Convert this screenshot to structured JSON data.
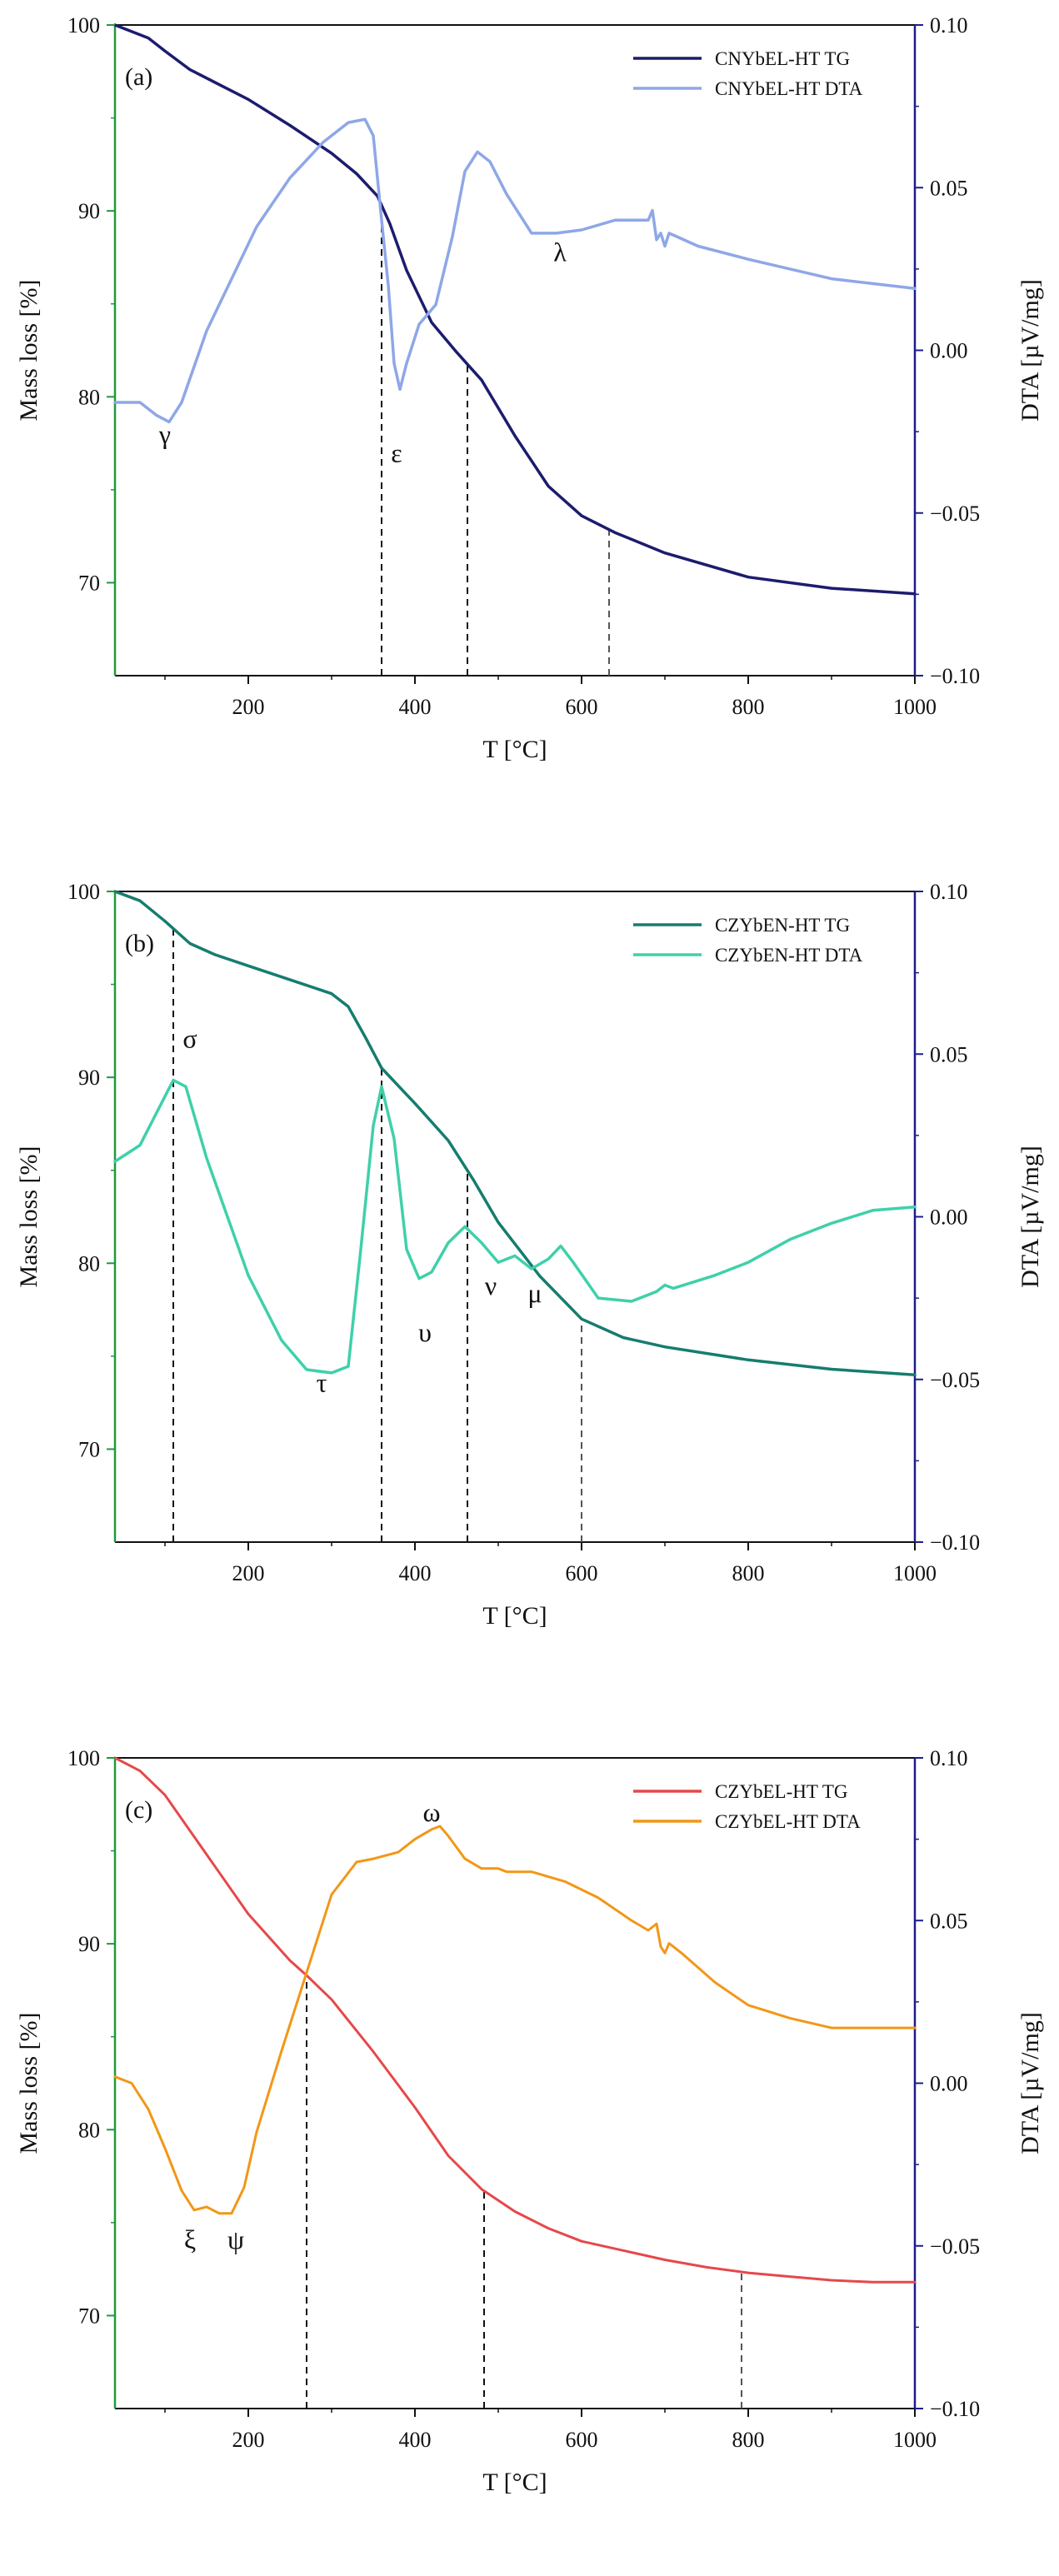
{
  "figure": {
    "x_label": "T [°C]",
    "left_label": "Mass loss [%]",
    "right_label": "DTA [µV/mg]",
    "x_ticks": [
      "200",
      "400",
      "600",
      "800",
      "1000"
    ],
    "left_ticks": [
      "70",
      "80",
      "90",
      "100"
    ],
    "right_ticks": [
      "−0.10",
      "−0.05",
      "0.00",
      "0.05",
      "0.10"
    ],
    "left_axis_color": "#1f9a3a",
    "right_axis_color": "#1c1c8c"
  },
  "chart_data": [
    {
      "type": "line",
      "panel": "(a)",
      "xlabel": "T [°C]",
      "ylabel": "Mass loss [%]",
      "y2label": "DTA [µV/mg]",
      "xlim": [
        40,
        1000
      ],
      "ylim": [
        65,
        100
      ],
      "y2lim": [
        -0.1,
        0.1
      ],
      "series": [
        {
          "name": "CNYbEL-HT TG",
          "axis": "left",
          "color": "#1c1c6e",
          "width": 3.5,
          "x": [
            40,
            80,
            100,
            130,
            200,
            250,
            300,
            330,
            355,
            370,
            390,
            420,
            450,
            480,
            520,
            560,
            600,
            640,
            700,
            800,
            900,
            1000
          ],
          "y": [
            100,
            99.3,
            98.6,
            97.6,
            96.0,
            94.6,
            93.1,
            92.0,
            90.8,
            89.3,
            86.8,
            84.0,
            82.4,
            80.9,
            77.9,
            75.2,
            73.6,
            72.7,
            71.6,
            70.3,
            69.7,
            69.4
          ]
        },
        {
          "name": "CNYbEL-HT DTA",
          "axis": "right",
          "color": "#8ea7e6",
          "width": 3.5,
          "x": [
            40,
            70,
            90,
            105,
            120,
            150,
            180,
            210,
            250,
            290,
            320,
            340,
            350,
            360,
            368,
            375,
            382,
            390,
            405,
            425,
            445,
            460,
            475,
            490,
            510,
            540,
            570,
            600,
            640,
            670,
            680,
            685,
            690,
            695,
            700,
            705,
            740,
            800,
            900,
            1000
          ],
          "y": [
            -0.016,
            -0.016,
            -0.02,
            -0.022,
            -0.016,
            0.006,
            0.022,
            0.038,
            0.053,
            0.064,
            0.07,
            0.071,
            0.066,
            0.04,
            0.02,
            -0.004,
            -0.012,
            -0.004,
            0.008,
            0.014,
            0.035,
            0.055,
            0.061,
            0.058,
            0.048,
            0.036,
            0.036,
            0.037,
            0.04,
            0.04,
            0.04,
            0.043,
            0.034,
            0.036,
            0.032,
            0.036,
            0.032,
            0.028,
            0.022,
            0.019
          ]
        }
      ],
      "dashed_x": [
        360,
        463,
        633
      ],
      "annotations": [
        {
          "text": "γ",
          "x": 100,
          "y": 77.5
        },
        {
          "text": "ε",
          "x": 378,
          "y": 76.5
        },
        {
          "text": "λ",
          "x": 574,
          "y": 87.3
        }
      ]
    },
    {
      "type": "line",
      "panel": "(b)",
      "xlabel": "T [°C]",
      "ylabel": "Mass loss [%]",
      "y2label": "DTA [µV/mg]",
      "xlim": [
        40,
        1000
      ],
      "ylim": [
        65,
        100
      ],
      "y2lim": [
        -0.1,
        0.1
      ],
      "series": [
        {
          "name": "CZYbEN-HT TG",
          "axis": "left",
          "color": "#157d6e",
          "width": 3.5,
          "x": [
            40,
            70,
            100,
            130,
            160,
            200,
            260,
            300,
            320,
            340,
            360,
            400,
            440,
            470,
            500,
            550,
            600,
            650,
            700,
            800,
            900,
            1000
          ],
          "y": [
            100,
            99.5,
            98.4,
            97.2,
            96.6,
            96.0,
            95.1,
            94.5,
            93.8,
            92.2,
            90.5,
            88.6,
            86.6,
            84.5,
            82.2,
            79.3,
            77.0,
            76.0,
            75.5,
            74.8,
            74.3,
            74.0
          ]
        },
        {
          "name": "CZYbEN-HT DTA",
          "axis": "right",
          "color": "#3fd0aa",
          "width": 3.5,
          "x": [
            40,
            70,
            90,
            110,
            125,
            150,
            200,
            240,
            270,
            300,
            320,
            335,
            350,
            360,
            375,
            390,
            405,
            420,
            440,
            460,
            480,
            500,
            520,
            540,
            560,
            575,
            590,
            620,
            660,
            690,
            700,
            710,
            760,
            800,
            850,
            900,
            950,
            1000
          ],
          "y": [
            0.017,
            0.022,
            0.032,
            0.042,
            0.04,
            0.018,
            -0.018,
            -0.038,
            -0.047,
            -0.048,
            -0.046,
            -0.01,
            0.028,
            0.04,
            0.024,
            -0.01,
            -0.019,
            -0.017,
            -0.008,
            -0.003,
            -0.008,
            -0.014,
            -0.012,
            -0.016,
            -0.013,
            -0.009,
            -0.014,
            -0.025,
            -0.026,
            -0.023,
            -0.021,
            -0.022,
            -0.018,
            -0.014,
            -0.007,
            -0.002,
            0.002,
            0.003
          ]
        }
      ],
      "dashed_x": [
        110,
        360,
        463,
        600
      ],
      "annotations": [
        {
          "text": "σ",
          "x": 130,
          "y": 91.6
        },
        {
          "text": "τ",
          "x": 288,
          "y": 73.1
        },
        {
          "text": "υ",
          "x": 412,
          "y": 75.8
        },
        {
          "text": "ν",
          "x": 491,
          "y": 78.3
        },
        {
          "text": "μ",
          "x": 544,
          "y": 77.9
        }
      ]
    },
    {
      "type": "line",
      "panel": "(c)",
      "xlabel": "T [°C]",
      "ylabel": "Mass loss [%]",
      "y2label": "DTA [µV/mg]",
      "xlim": [
        40,
        1000
      ],
      "ylim": [
        65,
        100
      ],
      "y2lim": [
        -0.1,
        0.1
      ],
      "series": [
        {
          "name": "CZYbEL-HT TG",
          "axis": "left",
          "color": "#e6484a",
          "width": 3.0,
          "x": [
            40,
            70,
            100,
            150,
            200,
            250,
            270,
            300,
            350,
            400,
            440,
            480,
            520,
            560,
            600,
            650,
            700,
            750,
            800,
            850,
            900,
            950,
            1000
          ],
          "y": [
            100,
            99.3,
            98.0,
            94.8,
            91.6,
            89.1,
            88.3,
            87.0,
            84.2,
            81.2,
            78.6,
            76.8,
            75.6,
            74.7,
            74.0,
            73.5,
            73.0,
            72.6,
            72.3,
            72.1,
            71.9,
            71.8,
            71.8
          ]
        },
        {
          "name": "CZYbEL-HT DTA",
          "axis": "right",
          "color": "#f29718",
          "width": 3.0,
          "x": [
            40,
            60,
            80,
            100,
            120,
            135,
            150,
            165,
            180,
            195,
            210,
            240,
            270,
            300,
            330,
            350,
            380,
            400,
            420,
            430,
            440,
            460,
            480,
            500,
            510,
            540,
            580,
            620,
            660,
            680,
            690,
            695,
            700,
            705,
            720,
            760,
            800,
            850,
            900,
            950,
            1000
          ],
          "y": [
            0.002,
            0.0,
            -0.008,
            -0.02,
            -0.033,
            -0.039,
            -0.038,
            -0.04,
            -0.04,
            -0.032,
            -0.015,
            0.01,
            0.034,
            0.058,
            0.068,
            0.069,
            0.071,
            0.075,
            0.078,
            0.079,
            0.076,
            0.069,
            0.066,
            0.066,
            0.065,
            0.065,
            0.062,
            0.057,
            0.05,
            0.047,
            0.049,
            0.042,
            0.04,
            0.043,
            0.04,
            0.031,
            0.024,
            0.02,
            0.017,
            0.017,
            0.017
          ]
        }
      ],
      "dashed_x": [
        270,
        483,
        792
      ],
      "annotations": [
        {
          "text": "ξ",
          "x": 130,
          "y": 73.6
        },
        {
          "text": "ψ",
          "x": 185,
          "y": 73.6
        },
        {
          "text": "ω",
          "x": 420,
          "y": 96.6
        }
      ]
    }
  ]
}
